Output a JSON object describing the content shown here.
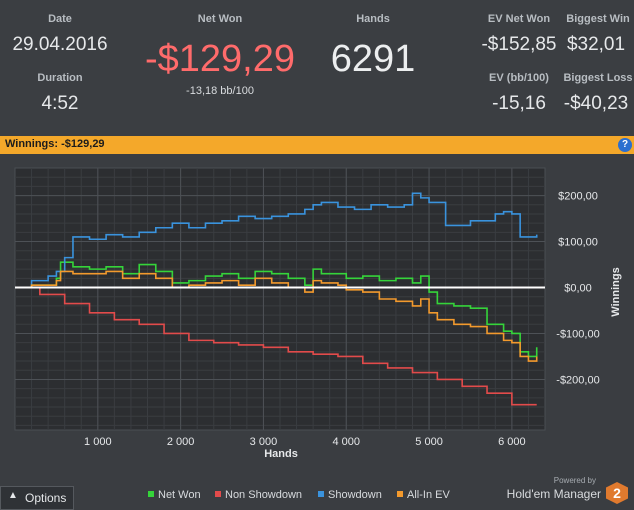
{
  "stats": {
    "date_label": "Date",
    "date_value": "29.04.2016",
    "duration_label": "Duration",
    "duration_value": "4:52",
    "netwon_label": "Net Won",
    "netwon_value": "-$129,29",
    "netwon_sub": "-13,18 bb/100",
    "hands_label": "Hands",
    "hands_value": "6291",
    "evnetwon_label": "EV Net Won",
    "evnetwon_value": "-$152,85",
    "biggestwin_label": "Biggest Win",
    "biggestwin_value": "$32,01",
    "evbb_label": "EV (bb/100)",
    "evbb_value": "-15,16",
    "biggestloss_label": "Biggest Loss",
    "biggestloss_value": "-$40,23"
  },
  "header_bar": {
    "title": "Winnings:",
    "value": "-$129,29",
    "help": "?"
  },
  "colors": {
    "net_won": "#35d43a",
    "non_showdown": "#e24b4b",
    "showdown": "#3a93dd",
    "allin_ev": "#f39a2d",
    "zero_line": "#ffffff",
    "accent": "#f4a82a"
  },
  "chart_data": {
    "type": "line",
    "xlabel": "Hands",
    "ylabel": "Winnings",
    "xlim": [
      0,
      6400
    ],
    "ylim": [
      -310,
      260
    ],
    "x_ticks": [
      1000,
      2000,
      3000,
      4000,
      5000,
      6000
    ],
    "x_tick_labels": [
      "1 000",
      "2 000",
      "3 000",
      "4 000",
      "5 000",
      "6 000"
    ],
    "y_ticks": [
      200,
      100,
      0,
      -100,
      -200
    ],
    "y_tick_labels": [
      "$200,00",
      "$100,00",
      "$0,00",
      "-$100,00",
      "-$200,00"
    ],
    "grid": true,
    "legend_position": "bottom",
    "series": [
      {
        "name": "Net Won",
        "color": "#35d43a",
        "x": [
          0,
          200,
          400,
          500,
          550,
          700,
          900,
          1100,
          1300,
          1500,
          1700,
          1900,
          2100,
          2300,
          2500,
          2700,
          2900,
          3100,
          3300,
          3500,
          3600,
          3700,
          3900,
          4000,
          4200,
          4400,
          4600,
          4800,
          4900,
          5000,
          5100,
          5300,
          5500,
          5700,
          5800,
          5900,
          6000,
          6100,
          6200,
          6300
        ],
        "y": [
          0,
          5,
          5,
          20,
          55,
          45,
          40,
          45,
          30,
          50,
          35,
          10,
          15,
          25,
          30,
          20,
          35,
          30,
          20,
          5,
          40,
          30,
          30,
          20,
          25,
          15,
          20,
          10,
          25,
          -10,
          -35,
          -40,
          -45,
          -80,
          -80,
          -95,
          -100,
          -140,
          -150,
          -130
        ]
      },
      {
        "name": "Non Showdown",
        "color": "#e24b4b",
        "x": [
          0,
          300,
          600,
          900,
          1200,
          1500,
          1800,
          2100,
          2400,
          2700,
          3000,
          3300,
          3600,
          3900,
          4200,
          4500,
          4800,
          5100,
          5400,
          5700,
          6000,
          6300
        ],
        "y": [
          0,
          -15,
          -35,
          -55,
          -70,
          -80,
          -100,
          -115,
          -120,
          -125,
          -130,
          -140,
          -145,
          -150,
          -165,
          -175,
          -185,
          -200,
          -215,
          -230,
          -255,
          -255
        ]
      },
      {
        "name": "Showdown",
        "color": "#3a93dd",
        "x": [
          0,
          200,
          400,
          500,
          600,
          700,
          900,
          1100,
          1300,
          1500,
          1700,
          1900,
          2100,
          2300,
          2500,
          2700,
          2900,
          3100,
          3300,
          3500,
          3600,
          3700,
          3900,
          4100,
          4300,
          4500,
          4700,
          4800,
          4900,
          5000,
          5200,
          5500,
          5800,
          5900,
          6000,
          6100,
          6300
        ],
        "y": [
          0,
          15,
          25,
          35,
          65,
          110,
          105,
          115,
          110,
          120,
          130,
          140,
          130,
          140,
          145,
          155,
          150,
          155,
          160,
          170,
          180,
          185,
          175,
          170,
          180,
          175,
          180,
          205,
          195,
          185,
          135,
          145,
          160,
          165,
          160,
          110,
          115
        ]
      },
      {
        "name": "All-In EV",
        "color": "#f39a2d",
        "x": [
          0,
          200,
          400,
          500,
          550,
          700,
          900,
          1100,
          1300,
          1500,
          1700,
          1900,
          2100,
          2300,
          2500,
          2700,
          2900,
          3100,
          3300,
          3500,
          3600,
          3700,
          3900,
          4000,
          4200,
          4400,
          4600,
          4800,
          4900,
          5000,
          5100,
          5300,
          5500,
          5700,
          5800,
          5900,
          6000,
          6100,
          6200,
          6300
        ],
        "y": [
          0,
          5,
          5,
          15,
          35,
          30,
          30,
          35,
          20,
          30,
          20,
          0,
          5,
          10,
          15,
          5,
          20,
          10,
          0,
          -10,
          15,
          10,
          5,
          -5,
          -10,
          -25,
          -30,
          -40,
          -25,
          -55,
          -70,
          -80,
          -85,
          -100,
          -100,
          -115,
          -120,
          -150,
          -160,
          -150
        ]
      }
    ]
  },
  "footer": {
    "options_label": "Options",
    "legend_net_won": "Net Won",
    "legend_non_showdown": "Non Showdown",
    "legend_showdown": "Showdown",
    "legend_allin_ev": "All-In EV",
    "powered_by": "Powered by",
    "brand": "Hold'em Manager",
    "logo_number": "2"
  }
}
